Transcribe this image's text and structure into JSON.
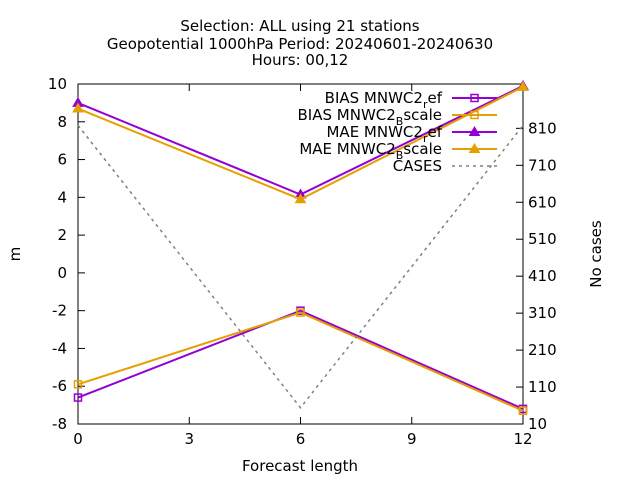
{
  "title": {
    "line1": "Selection: ALL using    21 stations",
    "line2": "Geopotential 1000hPa   Period: 20240601-20240630",
    "line3": "Hours: 00,12"
  },
  "chart_data": {
    "type": "line",
    "xlabel": "Forecast length",
    "ylabel": "m",
    "y2label": "No cases",
    "x": [
      0,
      6,
      12
    ],
    "xlim": [
      0,
      12
    ],
    "ylim": [
      -8,
      10
    ],
    "y2lim": [
      10,
      930
    ],
    "x_ticks": [
      "0",
      "3",
      "6",
      "9",
      "12"
    ],
    "y_ticks": [
      "-8",
      "-6",
      "-4",
      "-2",
      "0",
      "2",
      "4",
      "6",
      "8",
      "10"
    ],
    "y2_ticks": [
      "10",
      "110",
      "210",
      "310",
      "410",
      "510",
      "610",
      "710",
      "810"
    ],
    "grid": false,
    "legend_position": "top-right",
    "series": [
      {
        "name": "BIAS MNWC2_ref",
        "label_main": "BIAS MNWC2",
        "label_sub": "r",
        "label_tail": "ef",
        "axis": "y1",
        "color": "#9400d3",
        "marker": "open-square",
        "dash": false,
        "values": [
          -6.6,
          -2.0,
          -7.2
        ]
      },
      {
        "name": "BIAS MNWC2_Bscale",
        "label_main": "BIAS MNWC2",
        "label_sub": "B",
        "label_tail": "scale",
        "axis": "y1",
        "color": "#e69f00",
        "marker": "open-square",
        "dash": false,
        "values": [
          -5.9,
          -2.1,
          -7.3
        ]
      },
      {
        "name": "MAE MNWC2_ref",
        "label_main": "MAE MNWC2",
        "label_sub": "r",
        "label_tail": "ef",
        "axis": "y1",
        "color": "#9400d3",
        "marker": "filled-triangle",
        "dash": false,
        "values": [
          9.0,
          4.15,
          9.9
        ]
      },
      {
        "name": "MAE MNWC2_Bscale",
        "label_main": "MAE MNWC2",
        "label_sub": "B",
        "label_tail": "scale",
        "axis": "y1",
        "color": "#e69f00",
        "marker": "filled-triangle",
        "dash": false,
        "values": [
          8.7,
          3.9,
          9.85
        ]
      },
      {
        "name": "CASES",
        "label_main": "CASES",
        "label_sub": "",
        "label_tail": "",
        "axis": "y2",
        "color": "#808080",
        "marker": "none",
        "dash": true,
        "values": [
          818,
          54,
          818
        ]
      }
    ]
  }
}
